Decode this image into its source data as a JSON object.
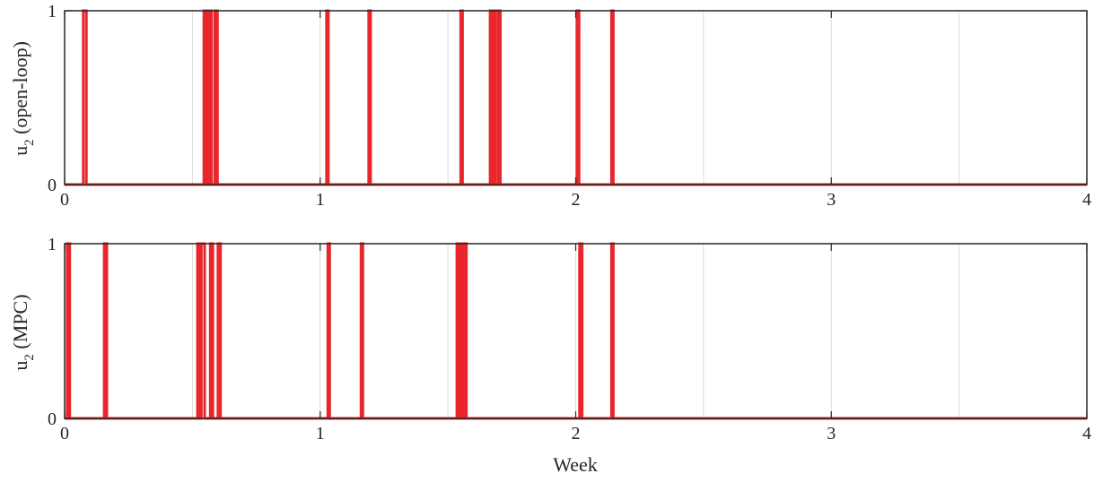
{
  "colors": {
    "signal": "#e8262b",
    "axis": "#262626",
    "grid": "#dcdcdc"
  },
  "chart_data": [
    {
      "type": "line",
      "step": true,
      "ylabel_main": "u",
      "ylabel_sub": "2",
      "ylabel_rest": " (open-loop)",
      "xlabel": "",
      "xlim": [
        0,
        4
      ],
      "ylim": [
        0,
        1
      ],
      "xticks": [
        0,
        1,
        2,
        3,
        4
      ],
      "yticks": [
        0,
        1
      ],
      "grid_x": [
        0.5,
        1,
        1.5,
        2,
        2.5,
        3,
        3.5
      ],
      "on_intervals": [
        [
          0.073,
          0.085
        ],
        [
          0.545,
          0.555
        ],
        [
          0.565,
          0.575
        ],
        [
          0.588,
          0.598
        ],
        [
          1.025,
          1.032
        ],
        [
          1.19,
          1.197
        ],
        [
          1.55,
          1.557
        ],
        [
          1.665,
          1.673
        ],
        [
          1.678,
          1.686
        ],
        [
          1.697,
          1.705
        ],
        [
          2.005,
          2.013
        ],
        [
          2.14,
          2.147
        ]
      ]
    },
    {
      "type": "line",
      "step": true,
      "ylabel_main": "u",
      "ylabel_sub": "2",
      "ylabel_rest": " (MPC)",
      "xlabel": "Week",
      "xlim": [
        0,
        4
      ],
      "ylim": [
        0,
        1
      ],
      "xticks": [
        0,
        1,
        2,
        3,
        4
      ],
      "yticks": [
        0,
        1
      ],
      "grid_x": [
        0.5,
        1,
        1.5,
        2,
        2.5,
        3,
        3.5
      ],
      "on_intervals": [
        [
          0.01,
          0.02
        ],
        [
          0.155,
          0.165
        ],
        [
          0.52,
          0.53
        ],
        [
          0.535,
          0.548
        ],
        [
          0.57,
          0.58
        ],
        [
          0.6,
          0.61
        ],
        [
          1.03,
          1.037
        ],
        [
          1.16,
          1.167
        ],
        [
          1.535,
          1.543
        ],
        [
          1.548,
          1.556
        ],
        [
          1.562,
          1.572
        ],
        [
          2.015,
          2.025
        ],
        [
          2.14,
          2.147
        ]
      ]
    }
  ]
}
